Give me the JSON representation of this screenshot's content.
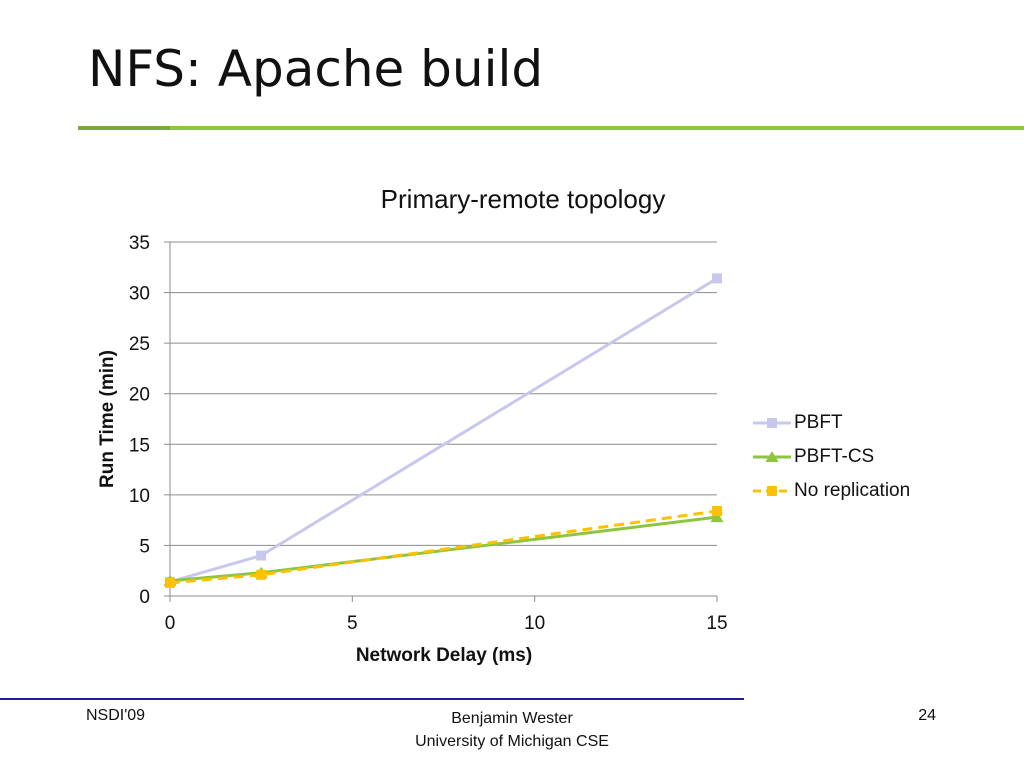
{
  "slide": {
    "title": "NFS: Apache build",
    "footer_left": "NSDI'09",
    "footer_center_line1": "Benjamin Wester",
    "footer_center_line2": "University of Michigan CSE",
    "page_number": "24"
  },
  "colors": {
    "title_rule": "#8cc63f",
    "footer_rule": "#1f1f99",
    "pbft": "#c8c8ee",
    "pbft_cs": "#8cc63f",
    "no_replication": "#ffc000",
    "grid": "#8c8c8c"
  },
  "chart_data": {
    "type": "line",
    "title": "Primary-remote topology",
    "xlabel": "Network Delay (ms)",
    "ylabel": "Run Time (min)",
    "xlim": [
      0,
      15
    ],
    "ylim": [
      0,
      35
    ],
    "xticks": [
      0,
      5,
      10,
      15
    ],
    "yticks": [
      0,
      5,
      10,
      15,
      20,
      25,
      30,
      35
    ],
    "grid": "horizontal",
    "legend_position": "right",
    "series": [
      {
        "name": "PBFT",
        "marker": "square",
        "dash": "solid",
        "color": "#c8c8ee",
        "x": [
          0,
          2.5,
          15
        ],
        "y": [
          1.4,
          4.0,
          31.4
        ]
      },
      {
        "name": "PBFT-CS",
        "marker": "triangle",
        "dash": "solid",
        "color": "#8cc63f",
        "x": [
          0,
          2.5,
          15
        ],
        "y": [
          1.5,
          2.3,
          7.8
        ]
      },
      {
        "name": "No replication",
        "marker": "square",
        "dash": "dashed",
        "color": "#ffc000",
        "x": [
          0,
          2.5,
          15
        ],
        "y": [
          1.3,
          2.1,
          8.4
        ]
      }
    ]
  }
}
